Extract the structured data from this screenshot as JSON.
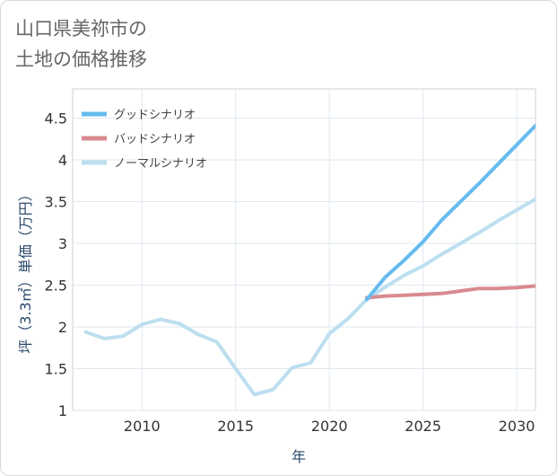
{
  "title_lines": [
    "山口県美祢市の",
    "土地の価格推移"
  ],
  "chart_data": {
    "type": "line",
    "xlabel": "年",
    "ylabel": "坪（3.3㎡）単価（万円）",
    "xlim": [
      2006.3,
      2031
    ],
    "ylim": [
      1,
      4.85
    ],
    "x_ticks": [
      2010,
      2015,
      2020,
      2025,
      2030
    ],
    "y_ticks": [
      1,
      1.5,
      2,
      2.5,
      3,
      3.5,
      4,
      4.5
    ],
    "grid": true,
    "legend_position": "top-left",
    "series": [
      {
        "name": "グッドシナリオ",
        "color": "#66bbef",
        "x": [
          2022,
          2023,
          2024,
          2025,
          2026,
          2027,
          2028,
          2029,
          2030,
          2031
        ],
        "y": [
          2.33,
          2.6,
          2.8,
          3.02,
          3.28,
          3.5,
          3.72,
          3.95,
          4.18,
          4.41
        ]
      },
      {
        "name": "バッドシナリオ",
        "color": "#d98a90",
        "x": [
          2022,
          2023,
          2024,
          2025,
          2026,
          2027,
          2028,
          2029,
          2030,
          2031
        ],
        "y": [
          2.35,
          2.37,
          2.38,
          2.39,
          2.4,
          2.43,
          2.46,
          2.46,
          2.47,
          2.49
        ]
      },
      {
        "name": "ノーマルシナリオ",
        "color": "#bcdff0",
        "x": [
          2007,
          2008,
          2009,
          2010,
          2011,
          2012,
          2013,
          2014,
          2015,
          2016,
          2017,
          2018,
          2019,
          2020,
          2021,
          2022,
          2023,
          2024,
          2025,
          2026,
          2027,
          2028,
          2029,
          2030,
          2031
        ],
        "y": [
          1.94,
          1.86,
          1.89,
          2.03,
          2.09,
          2.04,
          1.91,
          1.82,
          1.5,
          1.19,
          1.25,
          1.51,
          1.57,
          1.92,
          2.1,
          2.33,
          2.48,
          2.62,
          2.73,
          2.87,
          3.0,
          3.13,
          3.27,
          3.4,
          3.53
        ]
      }
    ]
  }
}
